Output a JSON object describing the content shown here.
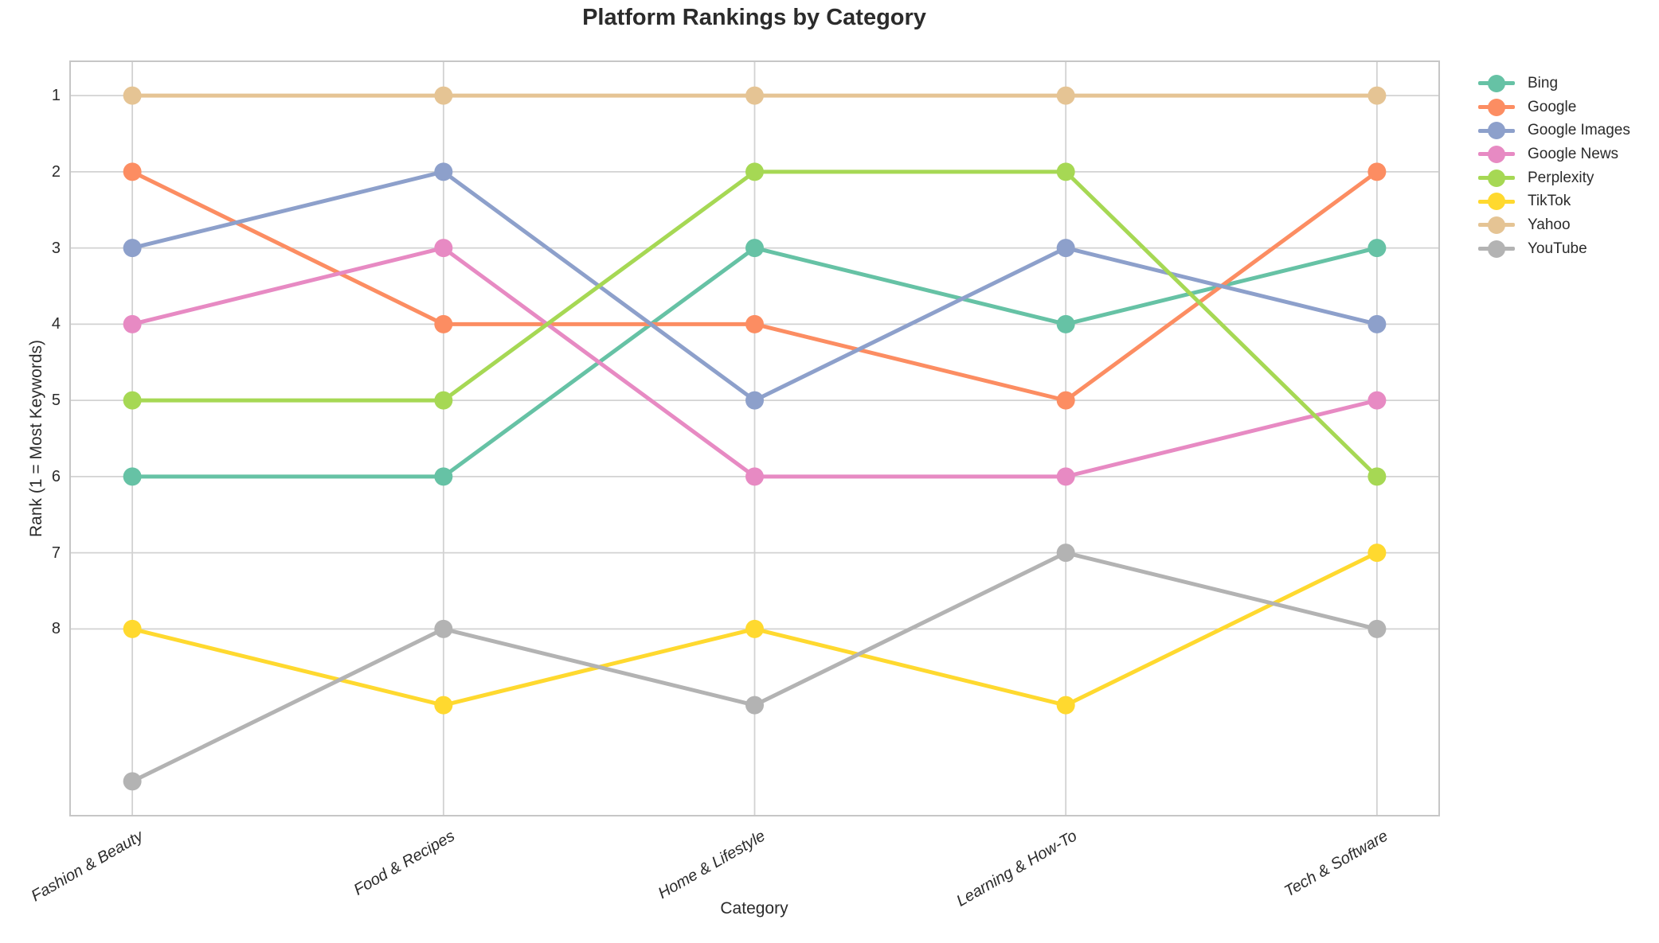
{
  "chart_data": {
    "type": "line",
    "title": "Platform Rankings by Category",
    "xlabel": "Category",
    "ylabel": "Rank (1 = Most Keywords)",
    "categories": [
      "Fashion & Beauty",
      "Food & Recipes",
      "Home & Lifestyle",
      "Learning & How-To",
      "Tech & Software"
    ],
    "yticks": [
      1,
      2,
      3,
      4,
      5,
      6,
      7,
      8
    ],
    "ylim": [
      10.45,
      0.55
    ],
    "y_axis_inverted": true,
    "grid": true,
    "legend_position": "right-outside-top",
    "series": [
      {
        "name": "Bing",
        "color": "#66c2a5",
        "values": [
          6,
          6,
          3,
          4,
          3
        ]
      },
      {
        "name": "Google",
        "color": "#fc8d62",
        "values": [
          2,
          4,
          4,
          5,
          2
        ]
      },
      {
        "name": "Google Images",
        "color": "#8da0cb",
        "values": [
          3,
          2,
          5,
          3,
          4
        ]
      },
      {
        "name": "Google News",
        "color": "#e78ac3",
        "values": [
          4,
          3,
          6,
          6,
          5
        ]
      },
      {
        "name": "Perplexity",
        "color": "#a6d854",
        "values": [
          5,
          5,
          2,
          2,
          6
        ]
      },
      {
        "name": "TikTok",
        "color": "#ffd92f",
        "values": [
          8,
          9,
          8,
          9,
          7
        ]
      },
      {
        "name": "Yahoo",
        "color": "#e5c494",
        "values": [
          1,
          1,
          1,
          1,
          1
        ]
      },
      {
        "name": "YouTube",
        "color": "#b3b3b3",
        "values": [
          10,
          8,
          9,
          7,
          8
        ]
      }
    ],
    "style": {
      "grid_color": "#d2d2d2",
      "spine_color": "#c6c6c6",
      "text_color": "#2b2b2b",
      "background": "#ffffff"
    }
  }
}
